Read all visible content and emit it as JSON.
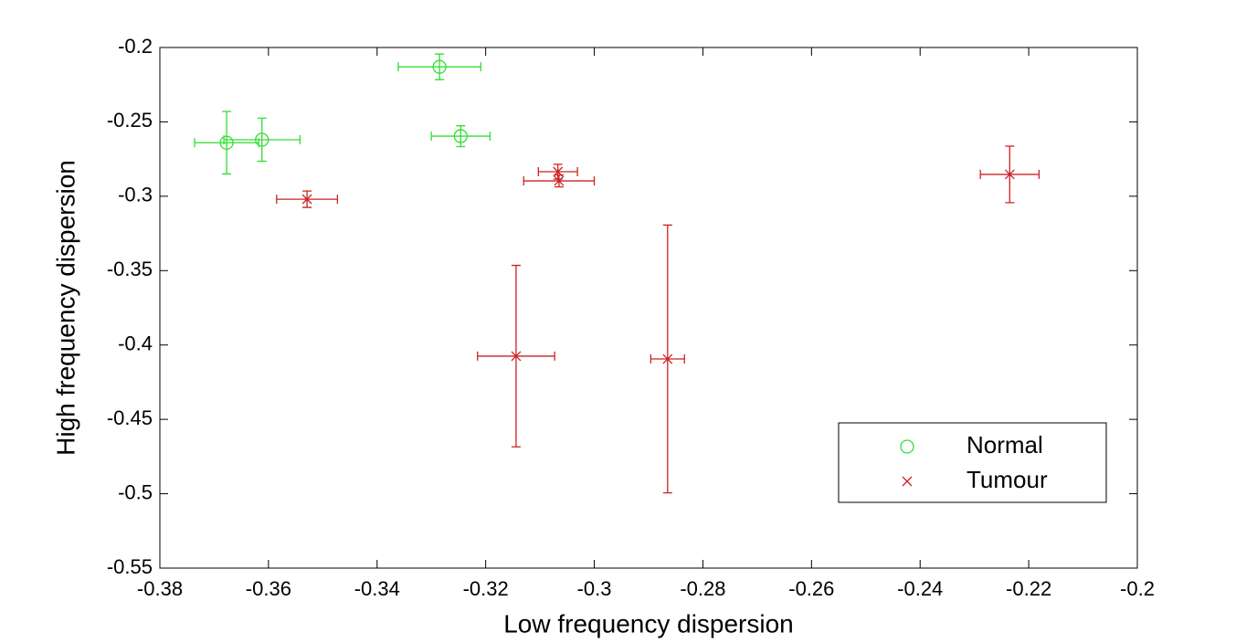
{
  "chart_data": {
    "type": "scatter",
    "xlabel": "Low frequency dispersion",
    "ylabel": "High frequency dispersion",
    "xlim": [
      -0.38,
      -0.2
    ],
    "ylim": [
      -0.55,
      -0.2
    ],
    "xticks": [
      -0.38,
      -0.36,
      -0.34,
      -0.32,
      -0.3,
      -0.28,
      -0.26,
      -0.24,
      -0.22,
      -0.2
    ],
    "yticks": [
      -0.55,
      -0.5,
      -0.45,
      -0.4,
      -0.35,
      -0.3,
      -0.25,
      -0.2
    ],
    "grid": false,
    "legend": "lower right",
    "series": [
      {
        "name": "Normal",
        "color": "#33dd33",
        "marker": "circle",
        "x": [
          -0.3677,
          -0.3612,
          -0.3285,
          -0.3246
        ],
        "y": [
          -0.264,
          -0.262,
          -0.213,
          -0.2596
        ],
        "xerr": [
          0.0059,
          0.007,
          0.0076,
          0.0054
        ],
        "yerr": [
          0.021,
          0.0145,
          0.0086,
          0.007
        ]
      },
      {
        "name": "Tumour",
        "color": "#cc2222",
        "marker": "x",
        "x": [
          -0.3529,
          -0.3067,
          -0.3065,
          -0.3144,
          -0.2865,
          -0.2235
        ],
        "y": [
          -0.302,
          -0.2835,
          -0.2897,
          -0.4075,
          -0.4094,
          -0.2853
        ],
        "xerr": [
          0.0056,
          0.0036,
          0.0065,
          0.0071,
          0.0031,
          0.0054
        ],
        "yerr": [
          0.0055,
          0.005,
          0.004,
          0.061,
          0.09,
          0.019
        ]
      }
    ]
  }
}
